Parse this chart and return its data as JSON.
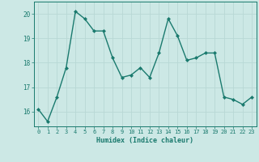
{
  "x": [
    0,
    1,
    2,
    3,
    4,
    5,
    6,
    7,
    8,
    9,
    10,
    11,
    12,
    13,
    14,
    15,
    16,
    17,
    18,
    19,
    20,
    21,
    22,
    23
  ],
  "y": [
    16.1,
    15.6,
    16.6,
    17.8,
    20.1,
    19.8,
    19.3,
    19.3,
    18.2,
    17.4,
    17.5,
    17.8,
    17.4,
    18.4,
    19.8,
    19.1,
    18.1,
    18.2,
    18.4,
    18.4,
    16.6,
    16.5,
    16.3,
    16.6
  ],
  "xlabel": "Humidex (Indice chaleur)",
  "ylim": [
    15.4,
    20.5
  ],
  "xlim": [
    -0.5,
    23.5
  ],
  "line_color": "#1a7a6e",
  "bg_color": "#cce8e5",
  "grid_color": "#b8d8d5",
  "tick_color": "#1a7a6e",
  "label_color": "#1a7a6e",
  "marker": "D",
  "markersize": 2,
  "linewidth": 1.0,
  "yticks": [
    16,
    17,
    18,
    19,
    20
  ],
  "xtick_fontsize": 5.0,
  "ytick_fontsize": 5.5,
  "xlabel_fontsize": 6.0
}
